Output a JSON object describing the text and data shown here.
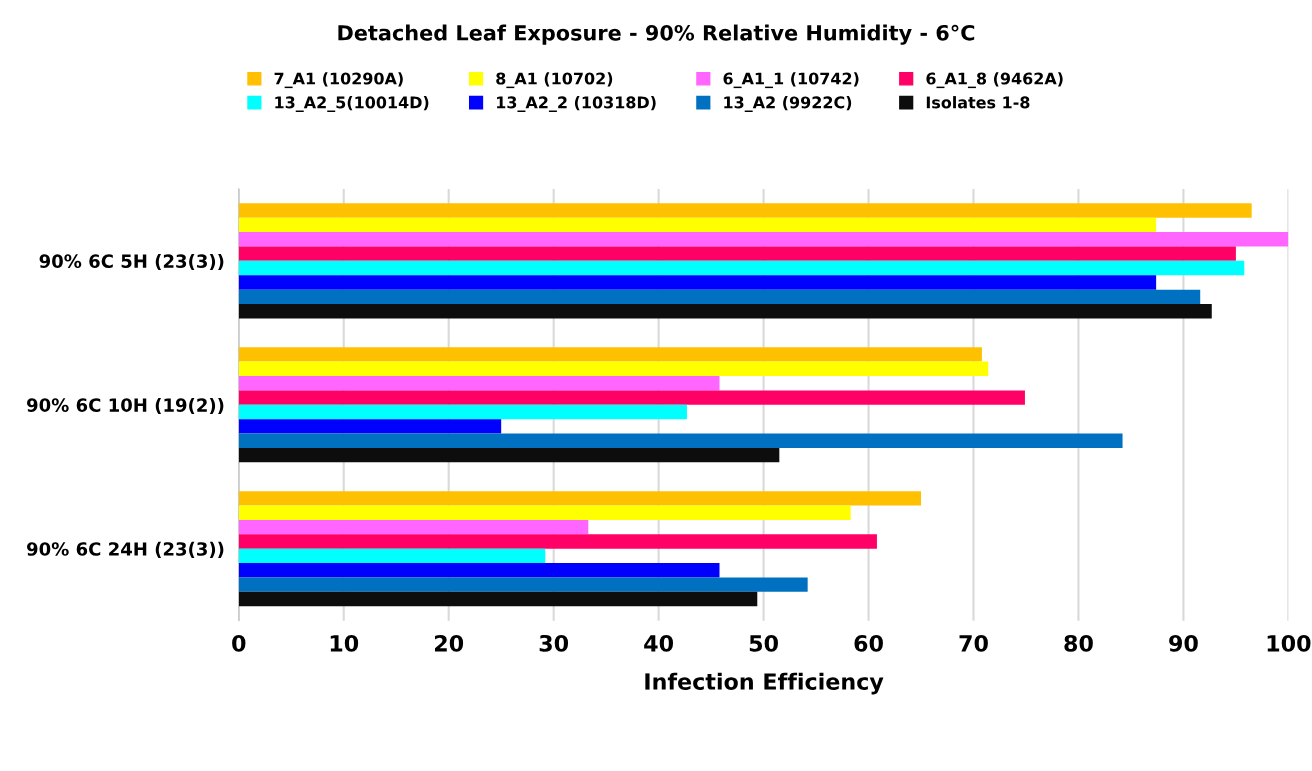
{
  "chart_data": {
    "type": "bar",
    "orientation": "horizontal",
    "title": "Detached Leaf Exposure - 90% Relative Humidity - 6°C",
    "xlabel": "Infection Efficiency",
    "categories": [
      "90% 6C 5H (23(3))",
      "90% 6C 10H (19(2))",
      "90% 6C 24H (23(3))"
    ],
    "series": [
      {
        "name": "7_A1 (10290A)",
        "color": "#ffc000",
        "values": [
          96.5,
          70.8,
          65.0
        ]
      },
      {
        "name": "8_A1 (10702)",
        "color": "#ffff00",
        "values": [
          87.4,
          71.4,
          58.3
        ]
      },
      {
        "name": "6_A1_1 (10742)",
        "color": "#ff66ff",
        "values": [
          100,
          45.8,
          33.3
        ]
      },
      {
        "name": "6_A1_8 (9462A)",
        "color": "#ff0066",
        "values": [
          95.0,
          74.9,
          60.8
        ]
      },
      {
        "name": "13_A2_5(10014D)",
        "color": "#00ffff",
        "values": [
          95.8,
          42.7,
          29.2
        ]
      },
      {
        "name": "13_A2_2 (10318D)",
        "color": "#0000ff",
        "values": [
          87.4,
          25.0,
          45.8
        ]
      },
      {
        "name": "13_A2 (9922C)",
        "color": "#0070c0",
        "values": [
          91.6,
          84.2,
          54.2
        ]
      },
      {
        "name": "Isolates 1-8",
        "color": "#0d0d0d",
        "values": [
          92.7,
          51.5,
          49.4
        ]
      }
    ],
    "xlim": [
      0,
      100
    ],
    "xticks": [
      0,
      10,
      20,
      30,
      40,
      50,
      60,
      70,
      80,
      90,
      100
    ],
    "grid": "x",
    "legend": "top"
  }
}
